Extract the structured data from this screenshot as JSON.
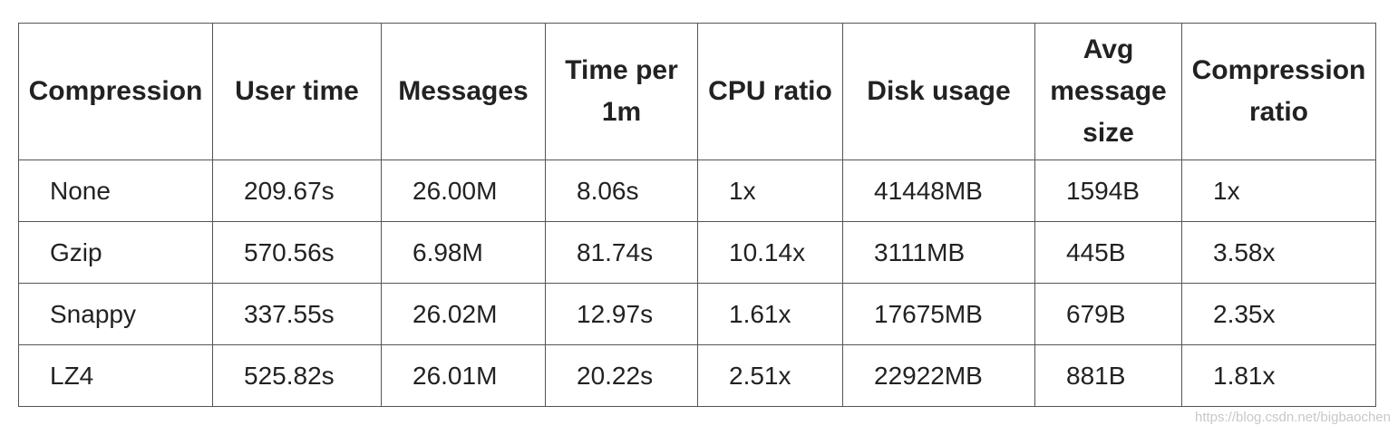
{
  "table": {
    "header": [
      "Compression",
      "User time",
      "Messages",
      "Time per 1m",
      "CPU ratio",
      "Disk usage",
      "Avg message size",
      "Compression ratio"
    ],
    "rows": [
      [
        "None",
        "209.67s",
        "26.00M",
        "8.06s",
        "1x",
        "41448MB",
        "1594B",
        "1x"
      ],
      [
        "Gzip",
        "570.56s",
        "6.98M",
        "81.74s",
        "10.14x",
        "3111MB",
        "445B",
        "3.58x"
      ],
      [
        "Snappy",
        "337.55s",
        "26.02M",
        "12.97s",
        "1.61x",
        "17675MB",
        "679B",
        "2.35x"
      ],
      [
        "LZ4",
        "525.82s",
        "26.01M",
        "20.22s",
        "2.51x",
        "22922MB",
        "881B",
        "1.81x"
      ]
    ]
  },
  "watermark": "https://blog.csdn.net/bigbaochen"
}
